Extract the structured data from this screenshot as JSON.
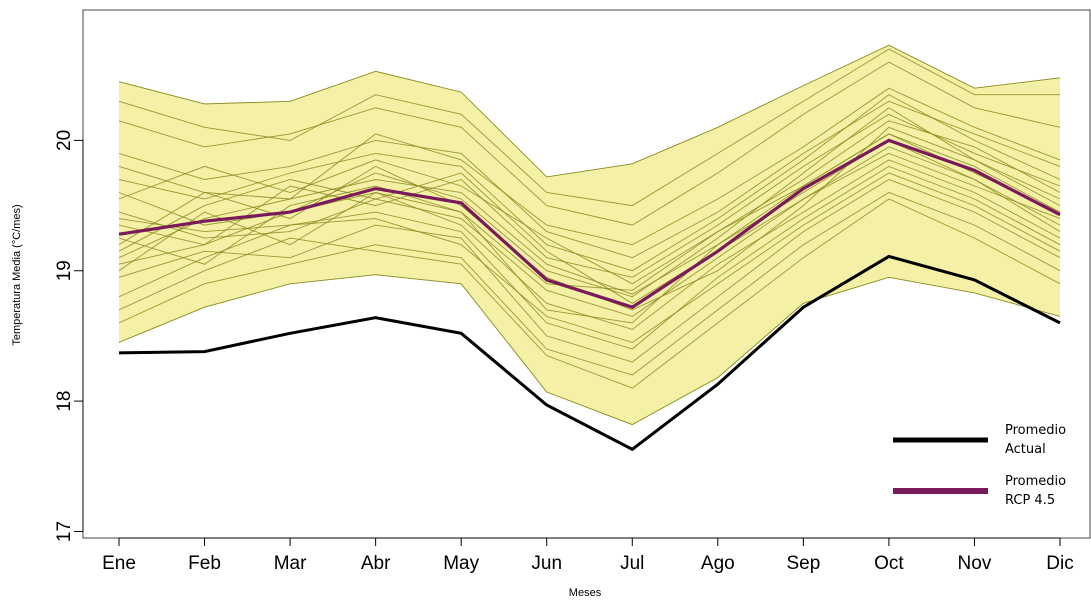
{
  "chart_data": {
    "type": "line",
    "title": "",
    "xlabel": "Meses",
    "ylabel": "Temperatura Media (°C/mes)",
    "categories": [
      "Ene",
      "Feb",
      "Mar",
      "Abr",
      "May",
      "Jun",
      "Jul",
      "Ago",
      "Sep",
      "Oct",
      "Nov",
      "Dic"
    ],
    "ylim": [
      16.95,
      21.0
    ],
    "yticks": [
      "17",
      "18",
      "19",
      "20"
    ],
    "grid": false,
    "legend_position": "bottom-right",
    "series": [
      {
        "name": "Promedio Actual",
        "color": "#000000",
        "values": [
          18.37,
          18.38,
          18.52,
          18.64,
          18.52,
          17.97,
          17.63,
          18.13,
          18.72,
          19.11,
          18.93,
          18.6
        ]
      },
      {
        "name": "Promedio RCP 4.5",
        "color": "#7a1a5a",
        "values": [
          19.28,
          19.38,
          19.45,
          19.63,
          19.52,
          18.93,
          18.72,
          19.15,
          19.63,
          20.0,
          19.77,
          19.43
        ]
      }
    ],
    "envelope": {
      "color": "#f4f0a6",
      "upper": [
        20.45,
        20.28,
        20.3,
        20.53,
        20.37,
        19.72,
        19.82,
        20.1,
        20.42,
        20.73,
        20.4,
        20.48
      ],
      "lower": [
        18.45,
        18.72,
        18.9,
        18.97,
        18.9,
        18.07,
        17.82,
        18.18,
        18.75,
        18.95,
        18.83,
        18.65
      ]
    },
    "ensemble_color": "#8a8a1e",
    "ensemble": [
      [
        19.1,
        19.4,
        19.55,
        19.7,
        19.6,
        19.05,
        18.82,
        19.2,
        19.65,
        20.05,
        19.8,
        19.45
      ],
      [
        19.45,
        19.25,
        19.3,
        19.55,
        19.4,
        18.85,
        18.65,
        19.1,
        19.55,
        19.95,
        19.7,
        19.3
      ],
      [
        18.8,
        19.1,
        19.35,
        19.45,
        19.3,
        18.6,
        18.4,
        18.95,
        19.4,
        19.8,
        19.55,
        19.2
      ],
      [
        19.9,
        19.7,
        19.8,
        20.0,
        19.9,
        19.3,
        19.1,
        19.45,
        19.9,
        20.3,
        20.05,
        19.8
      ],
      [
        19.2,
        19.6,
        19.4,
        19.8,
        19.5,
        18.95,
        18.7,
        19.0,
        19.5,
        20.1,
        19.85,
        19.5
      ],
      [
        18.6,
        18.9,
        19.05,
        19.2,
        19.1,
        18.4,
        18.2,
        18.7,
        19.2,
        19.6,
        19.35,
        19.0
      ],
      [
        20.15,
        19.95,
        20.05,
        20.25,
        20.1,
        19.5,
        19.35,
        19.75,
        20.2,
        20.6,
        20.25,
        20.1
      ],
      [
        19.35,
        19.2,
        19.65,
        19.5,
        19.7,
        19.1,
        18.95,
        19.35,
        19.8,
        20.2,
        19.9,
        19.65
      ],
      [
        19.0,
        19.45,
        19.2,
        19.6,
        19.35,
        18.75,
        18.55,
        19.05,
        19.45,
        19.85,
        19.6,
        19.25
      ],
      [
        19.7,
        19.55,
        19.75,
        19.9,
        19.8,
        19.2,
        19.0,
        19.4,
        19.85,
        20.35,
        20.0,
        19.7
      ],
      [
        18.95,
        19.15,
        19.1,
        19.35,
        19.25,
        18.5,
        18.3,
        18.8,
        19.3,
        19.7,
        19.45,
        19.1
      ],
      [
        19.55,
        19.8,
        19.6,
        19.85,
        19.65,
        19.25,
        18.9,
        19.3,
        19.7,
        20.15,
        19.95,
        19.6
      ],
      [
        19.25,
        19.05,
        19.5,
        19.65,
        19.45,
        18.7,
        18.6,
        19.2,
        19.6,
        20.0,
        19.7,
        19.35
      ],
      [
        20.3,
        20.1,
        20.0,
        20.35,
        20.2,
        19.6,
        19.5,
        19.9,
        20.3,
        20.7,
        20.35,
        20.35
      ],
      [
        18.7,
        19.0,
        19.25,
        19.15,
        19.05,
        18.35,
        18.1,
        18.6,
        19.1,
        19.55,
        19.25,
        18.9
      ],
      [
        19.6,
        19.35,
        19.45,
        19.75,
        19.55,
        19.0,
        18.8,
        19.25,
        19.75,
        20.25,
        19.85,
        19.55
      ],
      [
        19.15,
        19.5,
        19.7,
        19.55,
        19.75,
        19.15,
        18.75,
        19.15,
        19.55,
        19.9,
        19.65,
        19.4
      ],
      [
        19.8,
        19.6,
        19.55,
        20.05,
        19.85,
        19.35,
        19.2,
        19.55,
        19.95,
        20.4,
        20.1,
        19.85
      ],
      [
        19.4,
        19.3,
        19.35,
        19.4,
        19.2,
        18.65,
        18.45,
        18.9,
        19.35,
        19.75,
        19.5,
        19.15
      ],
      [
        19.05,
        19.2,
        19.45,
        19.6,
        19.45,
        18.9,
        18.85,
        19.3,
        19.65,
        20.05,
        19.75,
        19.45
      ]
    ],
    "legend": [
      {
        "label_line1": "Promedio",
        "label_line2": "Actual",
        "color": "#000000"
      },
      {
        "label_line1": "Promedio",
        "label_line2": "RCP 4.5",
        "color": "#7a1a5a"
      }
    ]
  }
}
